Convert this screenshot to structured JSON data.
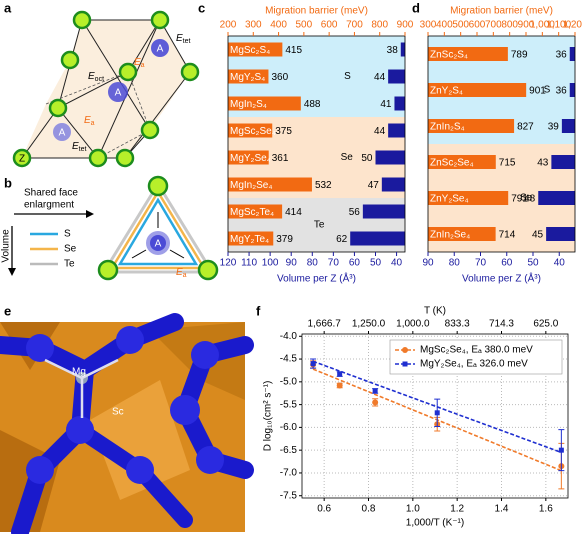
{
  "panel_labels": [
    "a",
    "b",
    "c",
    "d",
    "e",
    "f"
  ],
  "symbols": {
    "E": "E",
    "tet": "tet",
    "oct": "oct",
    "a": "a",
    "A": "A",
    "Z": "Z"
  },
  "panel_b": {
    "arrow_label": [
      "Shared face",
      "enlargment"
    ],
    "axis": "Volume",
    "legend": [
      "S",
      "Se",
      "Te"
    ]
  },
  "panel_e": {
    "Mg": "Mg",
    "Sc": "Sc"
  },
  "chart_data": [
    {
      "type": "hbar",
      "x2_label": "Migration barrier (meV)",
      "x_label": "Volume per Z (Å³)",
      "categories": [
        "MgSc₂S₄",
        "MgY₂S₄",
        "MgIn₂S₄",
        "MgSc₂Se₄",
        "MgY₂Se₄",
        "MgIn₂Se₄",
        "MgSc₂Te₄",
        "MgY₂Te₄"
      ],
      "series": [
        {
          "color": "#f26a12",
          "axis": "x2",
          "values": [
            415,
            360,
            488,
            375,
            361,
            532,
            414,
            379
          ]
        },
        {
          "color": "#1a1a9e",
          "axis": "x",
          "values": [
            38,
            44,
            41,
            44,
            50,
            47,
            56,
            62
          ]
        }
      ],
      "groups": [
        {
          "label": "S",
          "size": 3,
          "color": "#cdeefa"
        },
        {
          "label": "Se",
          "size": 3,
          "color": "#fde4cc"
        },
        {
          "label": "Te",
          "size": 2,
          "color": "#e2e2e2"
        }
      ],
      "x2lim": [
        200,
        900
      ],
      "x2ticks": [
        200,
        300,
        400,
        500,
        600,
        700,
        800,
        900
      ],
      "xlim": [
        120,
        36
      ],
      "xticks": [
        120,
        110,
        100,
        90,
        80,
        70,
        60,
        50,
        40
      ]
    },
    {
      "type": "hbar",
      "x2_label": "Migration barrier (meV)",
      "x_label": "Volume per Z (Å³)",
      "categories": [
        "ZnSc₂S₄",
        "ZnY₂S₄",
        "ZnIn₂S₄",
        "ZnSc₂Se₄",
        "ZnY₂Se₄",
        "ZnIn₂Se₄"
      ],
      "series": [
        {
          "color": "#f26a12",
          "axis": "x2",
          "values": [
            789,
            901,
            827,
            715,
            791,
            714
          ]
        },
        {
          "color": "#1a1a9e",
          "axis": "x",
          "values": [
            36,
            36,
            39,
            43,
            48,
            45
          ]
        }
      ],
      "groups": [
        {
          "label": "S",
          "size": 3,
          "color": "#cdeefa"
        },
        {
          "label": "Se",
          "size": 3,
          "color": "#fde4cc"
        }
      ],
      "x2lim": [
        300,
        1200
      ],
      "x2ticks": [
        300,
        400,
        500,
        600,
        700,
        800,
        900,
        {
          "value": 1000,
          "label": "1,000"
        },
        {
          "value": 1100,
          "label": "1,100"
        },
        {
          "value": 1200,
          "label": "1,200"
        }
      ],
      "xlim": [
        90,
        34
      ],
      "xticks": [
        90,
        80,
        70,
        60,
        50,
        40
      ]
    },
    {
      "type": "errorbar",
      "x_label": "1,000/T (K⁻¹)",
      "x2_label": "T (K)",
      "y_label": "D log₁₀(cm² s⁻¹)",
      "series": [
        {
          "name": "MgSc₂Se₄, Eₐ 380.0 meV",
          "color": "#f07a2a",
          "marker": "circle",
          "x": [
            0.55,
            0.67,
            0.83,
            1.11,
            1.67
          ],
          "values": [
            -4.62,
            -5.08,
            -5.45,
            -5.93,
            -6.85
          ],
          "errors": [
            0.08,
            0.05,
            0.08,
            0.15,
            0.5
          ],
          "fit": {
            "x": [
              0.55,
              1.67
            ],
            "values": [
              -4.72,
              -6.95
            ]
          }
        },
        {
          "name": "MgY₂Se₄, Eₐ 326.0 meV",
          "color": "#1f2fd0",
          "marker": "square",
          "x": [
            0.55,
            0.67,
            0.83,
            1.11,
            1.67
          ],
          "values": [
            -4.6,
            -4.83,
            -5.2,
            -5.68,
            -6.5
          ],
          "errors": [
            0.1,
            0.05,
            0.05,
            0.3,
            0.45
          ],
          "fit": {
            "x": [
              0.55,
              1.67
            ],
            "values": [
              -4.55,
              -6.55
            ]
          }
        }
      ],
      "xlim": [
        0.5,
        1.7
      ],
      "xticks": [
        0.6,
        0.8,
        {
          "value": 1,
          "label": "1.0"
        },
        1.2,
        1.4,
        1.6
      ],
      "x2ticks": [
        {
          "value": 1666.7,
          "label": "1,666.7"
        },
        {
          "value": 1250,
          "label": "1,250.0"
        },
        {
          "value": 1000,
          "label": "1,000.0"
        },
        {
          "value": 833.3,
          "label": "833.3"
        },
        {
          "value": 714.3,
          "label": "714.3"
        },
        {
          "value": 625,
          "label": "625.0"
        }
      ],
      "ylim": [
        -7.55,
        -3.95
      ],
      "yticks": [
        {
          "value": -4,
          "label": "-4.0"
        },
        -4.5,
        {
          "value": -5,
          "label": "-5.0"
        },
        -5.5,
        {
          "value": -6,
          "label": "-6.0"
        },
        -6.5,
        {
          "value": -7,
          "label": "-7.0"
        },
        -7.5
      ],
      "grid": true,
      "legend": "upper right"
    }
  ]
}
